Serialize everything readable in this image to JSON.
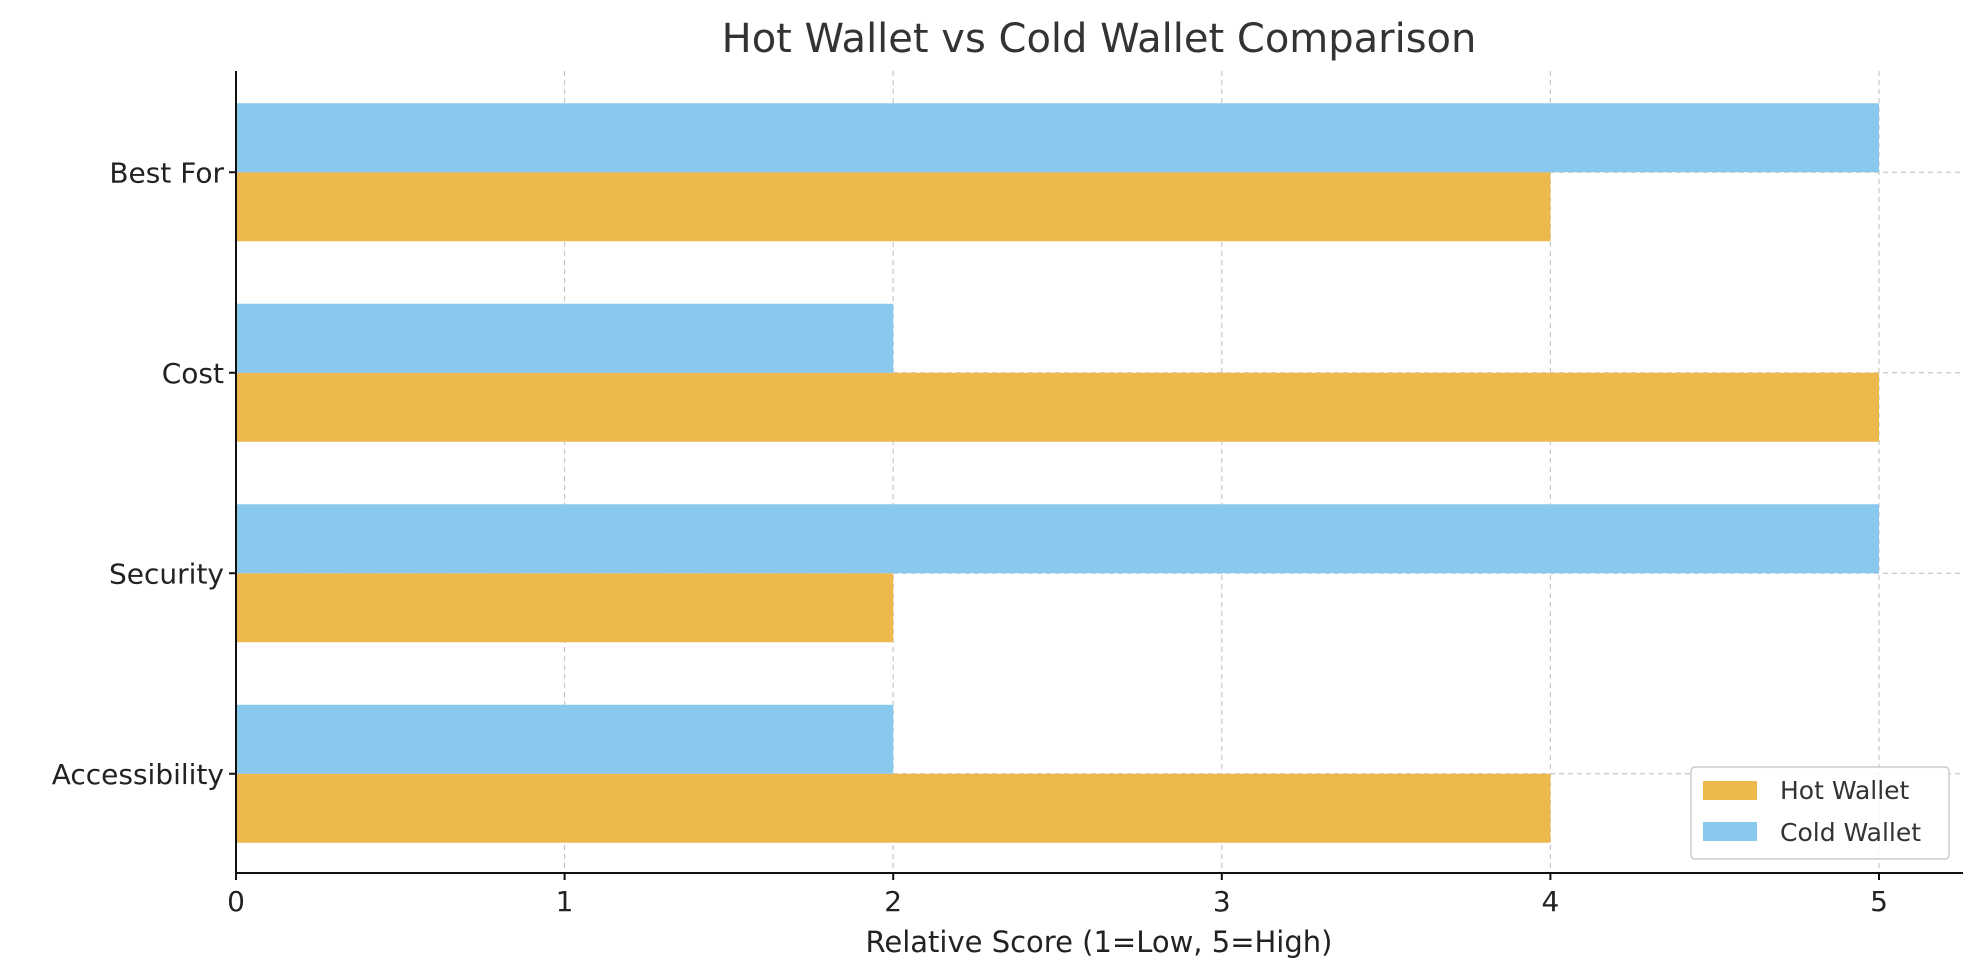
{
  "chart_data": {
    "type": "bar",
    "orientation": "horizontal",
    "title": "Hot Wallet vs Cold Wallet Comparison",
    "xlabel": "Relative Score (1=Low, 5=High)",
    "ylabel": "",
    "categories": [
      "Accessibility",
      "Security",
      "Cost",
      "Best For"
    ],
    "series": [
      {
        "name": "Hot Wallet",
        "values": [
          4,
          2,
          5,
          4
        ],
        "color": "#EDB94D"
      },
      {
        "name": "Cold Wallet",
        "values": [
          2,
          5,
          2,
          5
        ],
        "color": "#89C9EE"
      }
    ],
    "xlim": [
      0,
      5.25
    ],
    "xticks": [
      "0",
      "1",
      "2",
      "3",
      "4",
      "5"
    ],
    "grid": "dashed",
    "legend": "bottom-right"
  }
}
